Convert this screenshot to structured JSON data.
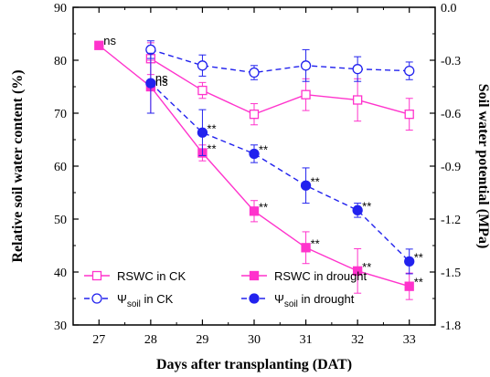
{
  "chart_data": {
    "type": "line",
    "x": [
      27,
      28,
      29,
      30,
      31,
      32,
      33
    ],
    "xlim": [
      26.5,
      33.5
    ],
    "xlabel": "Days after transplanting (DAT)",
    "ylabel_left": "Relative soil water content (%)",
    "ylabel_right": "Soil water potential (MPa)",
    "ylim_left": [
      30,
      90
    ],
    "ylim_right": [
      -1.8,
      0.0
    ],
    "xticks": [
      27,
      28,
      29,
      30,
      31,
      32,
      33
    ],
    "yticks_left": [
      30,
      40,
      50,
      60,
      70,
      80,
      90
    ],
    "yticks_right": [
      "0.0",
      "-0.3",
      "-0.6",
      "-0.9",
      "-1.2",
      "-1.5",
      "-1.8"
    ],
    "grid": false,
    "legend_position": "bottom-left",
    "series": [
      {
        "name": "RSWC in CK",
        "axis": "left",
        "color": "#ff33cc",
        "marker": "square-open",
        "line": "solid",
        "x": [
          28,
          29,
          30,
          31,
          32,
          33
        ],
        "values": [
          80.3,
          74.3,
          69.8,
          73.5,
          72.5,
          69.8
        ],
        "errors": [
          3.0,
          1.5,
          2.0,
          3.0,
          4.0,
          3.0
        ]
      },
      {
        "name": "RSWC in drought",
        "axis": "left",
        "color": "#ff33cc",
        "marker": "square-filled",
        "line": "solid",
        "x": [
          27,
          28,
          29,
          30,
          31,
          32,
          33
        ],
        "values": [
          82.8,
          75.0,
          62.5,
          51.5,
          44.6,
          40.2,
          37.3
        ],
        "errors": [
          0.5,
          5.0,
          1.5,
          2.0,
          3.0,
          4.2,
          2.5
        ],
        "annotations": [
          "ns",
          "ns",
          "**",
          "**",
          "**",
          "**",
          "**"
        ]
      },
      {
        "name_main": "Ψ",
        "name_sub": "soil",
        "name_rest": " in CK",
        "axis": "right",
        "color": "#2222ee",
        "marker": "circle-open",
        "line": "dashed",
        "x": [
          28,
          29,
          30,
          31,
          32,
          33
        ],
        "values": [
          -0.24,
          -0.33,
          -0.37,
          -0.33,
          -0.35,
          -0.36
        ],
        "errors": [
          0.05,
          0.06,
          0.04,
          0.09,
          0.07,
          0.05
        ]
      },
      {
        "name_main": "Ψ",
        "name_sub": "soil",
        "name_rest": " in drought",
        "axis": "right",
        "color": "#2222ee",
        "marker": "circle-filled",
        "line": "dashed",
        "x": [
          28,
          29,
          30,
          31,
          32,
          33
        ],
        "values": [
          -0.43,
          -0.71,
          -0.83,
          -1.01,
          -1.15,
          -1.44
        ],
        "errors": [
          0.17,
          0.13,
          0.05,
          0.1,
          0.04,
          0.07
        ],
        "annotations": [
          "ns",
          "**",
          "**",
          "**",
          "**",
          "**"
        ]
      }
    ]
  }
}
